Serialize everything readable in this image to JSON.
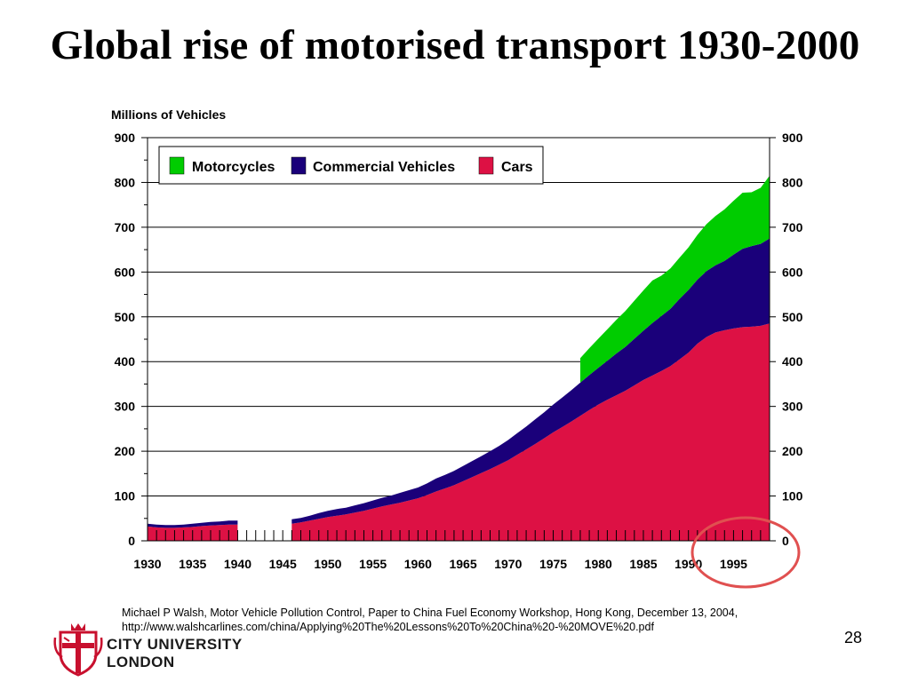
{
  "slide": {
    "title": "Global rise of motorised transport 1930-2000",
    "source_line1": "Michael P Walsh, Motor Vehicle Pollution Control, Paper to China Fuel Economy Workshop, Hong Kong, December 13, 2004,",
    "source_line2": "http://www.walshcarlines.com/china/Applying%20The%20Lessons%20To%20China%20-%20MOVE%20.pdf",
    "page_number": "28",
    "logo_line1": "CITY UNIVERSITY",
    "logo_line2": "LONDON"
  },
  "colors": {
    "motorcycles": "#00cc00",
    "commercial": "#1a007a",
    "cars": "#dd1144",
    "annotation_circle": "#e05050"
  },
  "chart_data": {
    "type": "area",
    "stacked": true,
    "ylabel": "Millions of Vehicles",
    "ylim": [
      0,
      900
    ],
    "yticks": [
      0,
      100,
      200,
      300,
      400,
      500,
      600,
      700,
      800,
      900
    ],
    "xlim": [
      1930,
      1999
    ],
    "xticks": [
      1930,
      1935,
      1940,
      1945,
      1950,
      1955,
      1960,
      1965,
      1970,
      1975,
      1980,
      1985,
      1990,
      1995
    ],
    "grid": "horizontal",
    "legend": {
      "position": "top-left",
      "items": [
        "Motorcycles",
        "Commercial Vehicles",
        "Cars"
      ]
    },
    "gap": [
      1940,
      1946
    ],
    "x": [
      1930,
      1931,
      1932,
      1933,
      1934,
      1935,
      1936,
      1937,
      1938,
      1939,
      1940,
      1946,
      1947,
      1948,
      1949,
      1950,
      1951,
      1952,
      1953,
      1954,
      1955,
      1956,
      1957,
      1958,
      1959,
      1960,
      1961,
      1962,
      1963,
      1964,
      1965,
      1966,
      1967,
      1968,
      1969,
      1970,
      1971,
      1972,
      1973,
      1974,
      1975,
      1976,
      1977,
      1978,
      1979,
      1980,
      1981,
      1982,
      1983,
      1984,
      1985,
      1986,
      1987,
      1988,
      1989,
      1990,
      1991,
      1992,
      1993,
      1994,
      1995,
      1996,
      1997,
      1998,
      1999
    ],
    "series": [
      {
        "name": "Cars",
        "color_key": "cars",
        "values": [
          32,
          30,
          29,
          29,
          30,
          31,
          33,
          34,
          35,
          36,
          36,
          38,
          41,
          45,
          49,
          53,
          56,
          59,
          63,
          67,
          72,
          77,
          81,
          85,
          90,
          95,
          102,
          110,
          117,
          124,
          133,
          142,
          151,
          160,
          170,
          180,
          192,
          204,
          216,
          229,
          242,
          254,
          266,
          279,
          292,
          304,
          315,
          325,
          335,
          347,
          359,
          369,
          379,
          390,
          405,
          420,
          440,
          455,
          465,
          470,
          474,
          477,
          478,
          480,
          485
        ]
      },
      {
        "name": "Commercial Vehicles",
        "color_key": "commercial",
        "values": [
          6,
          6,
          6,
          6,
          6,
          7,
          7,
          8,
          8,
          9,
          9,
          10,
          10,
          11,
          13,
          14,
          15,
          15,
          16,
          17,
          18,
          19,
          20,
          22,
          23,
          24,
          26,
          29,
          30,
          32,
          34,
          36,
          38,
          40,
          42,
          45,
          48,
          51,
          55,
          58,
          62,
          66,
          70,
          74,
          78,
          82,
          87,
          93,
          98,
          104,
          110,
          117,
          123,
          128,
          135,
          140,
          143,
          147,
          150,
          155,
          165,
          175,
          180,
          183,
          190
        ]
      },
      {
        "name": "Motorcycles",
        "color_key": "motorcycles",
        "values": [
          null,
          null,
          null,
          null,
          null,
          null,
          null,
          null,
          null,
          null,
          null,
          null,
          null,
          null,
          null,
          null,
          null,
          null,
          null,
          null,
          null,
          null,
          null,
          null,
          null,
          null,
          null,
          null,
          null,
          null,
          null,
          null,
          null,
          null,
          null,
          null,
          null,
          null,
          null,
          null,
          null,
          null,
          null,
          55,
          60,
          65,
          70,
          75,
          80,
          85,
          90,
          95,
          90,
          90,
          92,
          95,
          100,
          105,
          110,
          115,
          120,
          125,
          120,
          125,
          140
        ]
      }
    ]
  }
}
